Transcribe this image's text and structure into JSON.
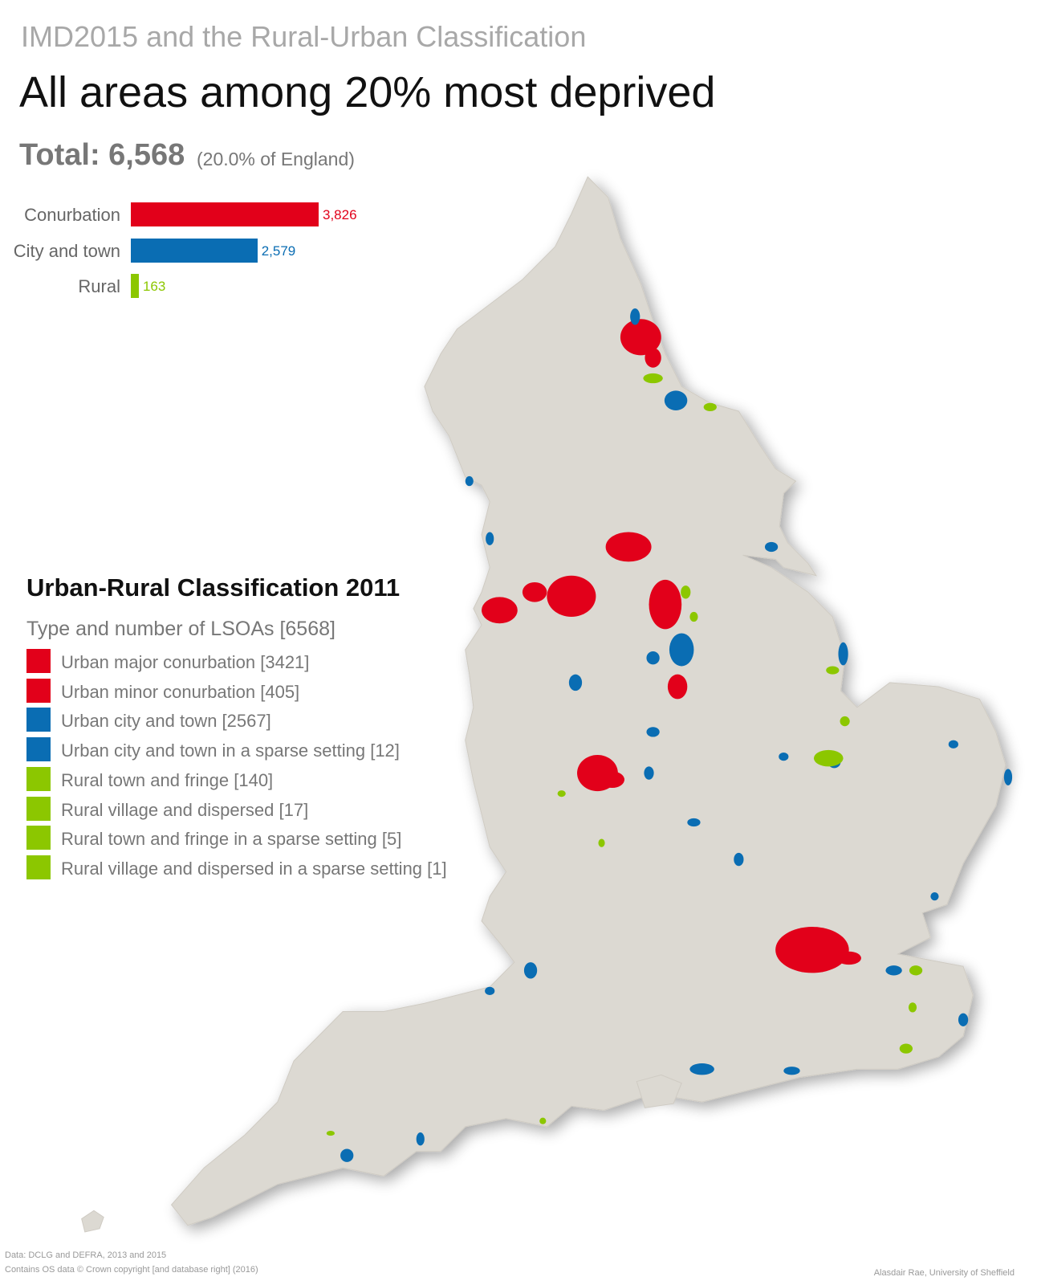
{
  "header": {
    "supertitle": "IMD2015 and the Rural-Urban Classification",
    "title": "All areas among 20% most deprived",
    "total": "Total: 6,568",
    "share": "(20.0% of England)"
  },
  "chart_data": {
    "type": "bar",
    "orientation": "horizontal",
    "categories": [
      "Conurbation",
      "City and town",
      "Rural"
    ],
    "values": [
      3826,
      2579,
      163
    ],
    "value_labels": [
      "3,826",
      "2,579",
      "163"
    ],
    "colors": [
      "#e2001a",
      "#0a6db3",
      "#8cc700"
    ]
  },
  "legend": {
    "title": "Urban-Rural Classification 2011",
    "subtitle": "Type and number of LSOAs [6568]",
    "items": [
      {
        "label": "Urban major conurbation [3421]",
        "color": "#e2001a"
      },
      {
        "label": "Urban minor conurbation [405]",
        "color": "#e2001a"
      },
      {
        "label": "Urban city and town [2567]",
        "color": "#0a6db3"
      },
      {
        "label": "Urban city and town in a sparse setting [12]",
        "color": "#0a6db3"
      },
      {
        "label": "Rural town and fringe [140]",
        "color": "#8cc700"
      },
      {
        "label": "Rural village and dispersed [17]",
        "color": "#8cc700"
      },
      {
        "label": "Rural town and fringe in a sparse setting [5]",
        "color": "#8cc700"
      },
      {
        "label": "Rural village and dispersed in a sparse setting [1]",
        "color": "#8cc700"
      }
    ]
  },
  "footer": {
    "source": "Data: DCLG and DEFRA, 2013 and 2015",
    "copyright": "Contains OS data © Crown copyright [and database right] (2016)",
    "credit": "Alasdair Rae, University of Sheffield"
  }
}
